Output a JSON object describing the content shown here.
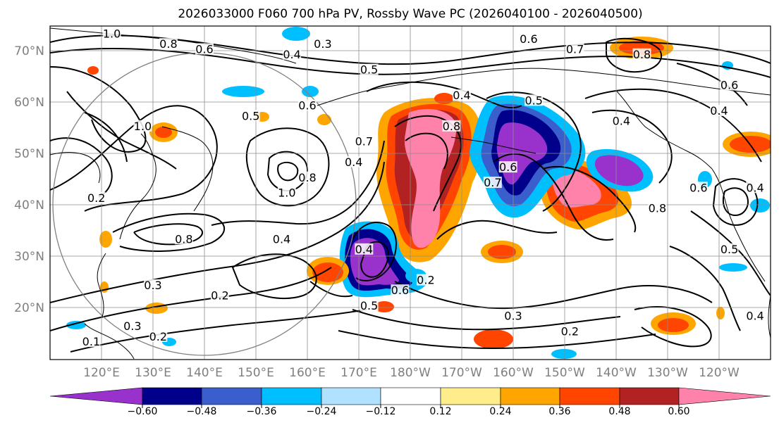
{
  "title": "2026033000 F060 700 hPa PV, Rossby Wave PC (2026040100 - 2026040500)",
  "lat_labels": [
    "70°N",
    "60°N",
    "50°N",
    "40°N",
    "30°N",
    "20°N"
  ],
  "lat_values": [
    70,
    60,
    50,
    40,
    30,
    20
  ],
  "lon_labels": [
    "120°E",
    "130°E",
    "140°E",
    "150°E",
    "160°E",
    "170°E",
    "180°W",
    "170°W",
    "160°W",
    "150°W",
    "140°W",
    "130°W",
    "120°W"
  ],
  "map_extent": {
    "lon_min": 110,
    "lon_max": 250,
    "lat_min": 10,
    "lat_max": 75
  },
  "colorbar": {
    "colors": [
      "#9932cc",
      "#00008b",
      "#3a5fcd",
      "#00bfff",
      "#b0e2ff",
      "#ffffff",
      "#ffec8b",
      "#ffa500",
      "#ff4500",
      "#b22222",
      "#ff82ab"
    ],
    "tick_labels": [
      "−0.60",
      "−0.48",
      "−0.36",
      "−0.24",
      "−0.12",
      "0.12",
      "0.24",
      "0.36",
      "0.48",
      "0.60"
    ]
  },
  "contour_labels": [
    {
      "text": "1.0",
      "lon": 122,
      "lat": 73
    },
    {
      "text": "0.8",
      "lon": 133,
      "lat": 71
    },
    {
      "text": "0.6",
      "lon": 140,
      "lat": 70
    },
    {
      "text": "0.4",
      "lon": 157,
      "lat": 69
    },
    {
      "text": "0.3",
      "lon": 163,
      "lat": 71
    },
    {
      "text": "0.5",
      "lon": 172,
      "lat": 66
    },
    {
      "text": "0.6",
      "lon": 203,
      "lat": 72
    },
    {
      "text": "0.7",
      "lon": 212,
      "lat": 70
    },
    {
      "text": "0.8",
      "lon": 225,
      "lat": 69
    },
    {
      "text": "0.6",
      "lon": 242,
      "lat": 63
    },
    {
      "text": "0.4",
      "lon": 240,
      "lat": 58
    },
    {
      "text": "0.5",
      "lon": 149,
      "lat": 57
    },
    {
      "text": "0.6",
      "lon": 160,
      "lat": 59
    },
    {
      "text": "0.7",
      "lon": 171,
      "lat": 52
    },
    {
      "text": "0.4",
      "lon": 190,
      "lat": 61
    },
    {
      "text": "0.8",
      "lon": 188,
      "lat": 55
    },
    {
      "text": "0.5",
      "lon": 204,
      "lat": 60
    },
    {
      "text": "0.4",
      "lon": 221,
      "lat": 56
    },
    {
      "text": "1.0",
      "lon": 128,
      "lat": 55
    },
    {
      "text": "0.2",
      "lon": 119,
      "lat": 41
    },
    {
      "text": "0.4",
      "lon": 169,
      "lat": 48
    },
    {
      "text": "1.0",
      "lon": 156,
      "lat": 42
    },
    {
      "text": "0.8",
      "lon": 160,
      "lat": 45
    },
    {
      "text": "0.4",
      "lon": 155,
      "lat": 33
    },
    {
      "text": "0.6",
      "lon": 199,
      "lat": 47
    },
    {
      "text": "0.7",
      "lon": 196,
      "lat": 44
    },
    {
      "text": "0.8",
      "lon": 228,
      "lat": 39
    },
    {
      "text": "0.6",
      "lon": 236,
      "lat": 43
    },
    {
      "text": "0.4",
      "lon": 247,
      "lat": 43
    },
    {
      "text": "0.4",
      "lon": 171,
      "lat": 31
    },
    {
      "text": "0.8",
      "lon": 136,
      "lat": 33
    },
    {
      "text": "0.3",
      "lon": 130,
      "lat": 24
    },
    {
      "text": "0.2",
      "lon": 143,
      "lat": 22
    },
    {
      "text": "0.3",
      "lon": 126,
      "lat": 16
    },
    {
      "text": "0.2",
      "lon": 131,
      "lat": 14
    },
    {
      "text": "0.1",
      "lon": 118,
      "lat": 13
    },
    {
      "text": "0.6",
      "lon": 178,
      "lat": 23
    },
    {
      "text": "0.2",
      "lon": 183,
      "lat": 25
    },
    {
      "text": "0.5",
      "lon": 172,
      "lat": 20
    },
    {
      "text": "0.3",
      "lon": 200,
      "lat": 18
    },
    {
      "text": "0.2",
      "lon": 211,
      "lat": 15
    },
    {
      "text": "0.5",
      "lon": 242,
      "lat": 31
    },
    {
      "text": "0.4",
      "lon": 247,
      "lat": 18
    }
  ]
}
